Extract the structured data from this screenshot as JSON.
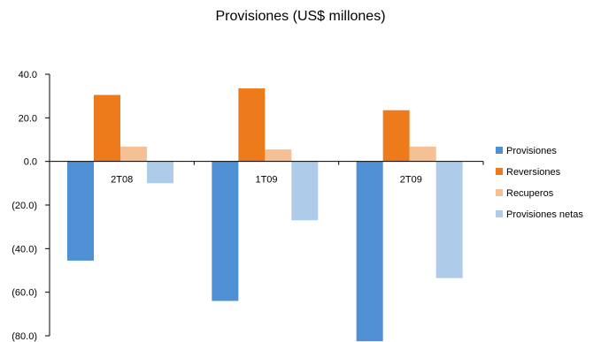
{
  "chart_data": {
    "type": "bar",
    "title": "Provisiones (US$ millones)",
    "categories": [
      "2T08",
      "1T09",
      "2T09"
    ],
    "series": [
      {
        "name": "Provisiones",
        "values": [
          -45.5,
          -64.0,
          -82.5
        ],
        "color": "#4f8fd3"
      },
      {
        "name": "Reversiones",
        "values": [
          30.5,
          33.5,
          23.5
        ],
        "color": "#ee7b1b"
      },
      {
        "name": "Recuperos",
        "values": [
          6.8,
          5.5,
          6.8
        ],
        "color": "#f5c093"
      },
      {
        "name": "Provisiones netas",
        "values": [
          -10.0,
          -27.0,
          -53.5
        ],
        "color": "#aecbe9"
      }
    ],
    "ylim": [
      -80,
      40
    ],
    "yticks": [
      "40.0",
      "20.0",
      "0.0",
      "(20.0)",
      "(40.0)",
      "(60.0)",
      "(80.0)"
    ],
    "ytick_values": [
      40,
      20,
      0,
      -20,
      -40,
      -60,
      -80
    ],
    "legend_position": "right",
    "grid": false
  }
}
